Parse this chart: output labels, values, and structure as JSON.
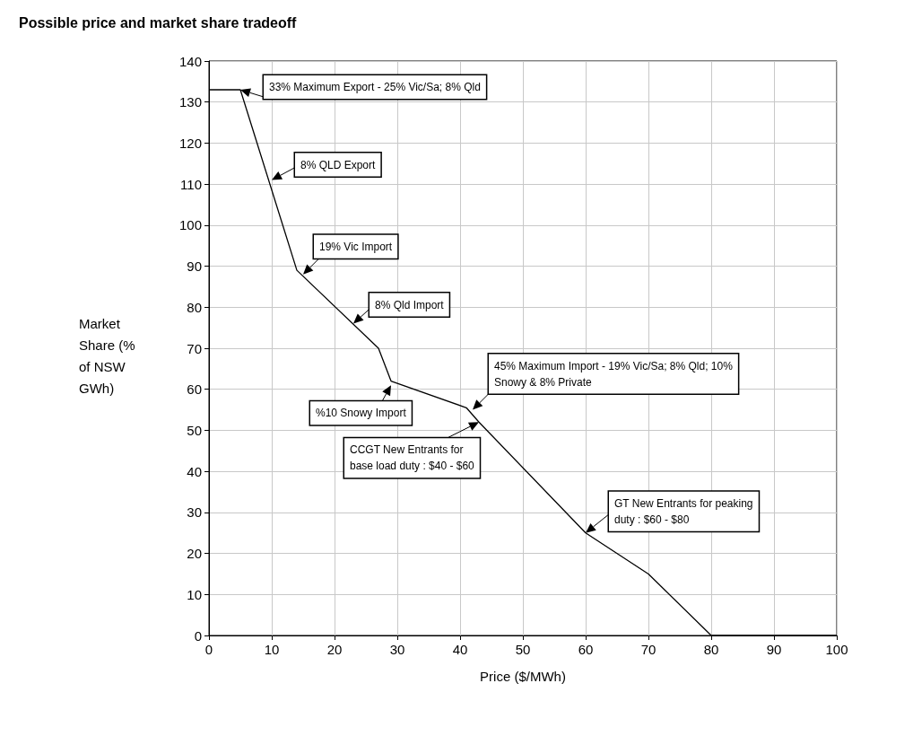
{
  "chart_data": {
    "type": "line",
    "title": "Possible price and market share tradeoff",
    "xlabel": "Price ($/MWh)",
    "ylabel": "Market Share (% of NSW GWh)",
    "x": [
      0,
      5,
      14,
      27,
      29,
      41,
      43,
      60,
      70,
      80,
      100
    ],
    "series": [
      {
        "color": "#000000",
        "values": [
          133,
          133,
          89,
          70,
          62,
          55.5,
          52,
          25,
          15,
          0,
          0
        ]
      }
    ],
    "xlim": [
      0,
      100
    ],
    "xticks": [
      0,
      10,
      20,
      30,
      40,
      50,
      60,
      70,
      80,
      90,
      100
    ],
    "ylim": [
      0,
      140
    ],
    "yticks": [
      0,
      10,
      20,
      30,
      40,
      50,
      60,
      70,
      80,
      90,
      100,
      110,
      120,
      130,
      140
    ],
    "grid": true,
    "marker": "none",
    "line_style": "solid",
    "annotations": [
      {
        "text": "33% Maximum Export - 25% Vic/Sa; 8% Qld",
        "x": 5,
        "y": 133
      },
      {
        "text": "8% QLD Export",
        "x": 10,
        "y": 111
      },
      {
        "text": "19% Vic Import",
        "x": 15,
        "y": 88
      },
      {
        "text": "8% Qld Import",
        "x": 23,
        "y": 76
      },
      {
        "text": "%10 Snowy Import",
        "x": 29,
        "y": 61
      },
      {
        "text": "45% Maximum Import - 19% Vic/Sa; 8% Qld; 10%\nSnowy & 8% Private",
        "x": 42,
        "y": 55
      },
      {
        "text": "CCGT New Entrants for\nbase load duty : $40 - $60",
        "x": 43,
        "y": 52
      },
      {
        "text": "GT New Entrants for peaking\nduty : $60 - $80",
        "x": 60,
        "y": 25
      }
    ]
  }
}
